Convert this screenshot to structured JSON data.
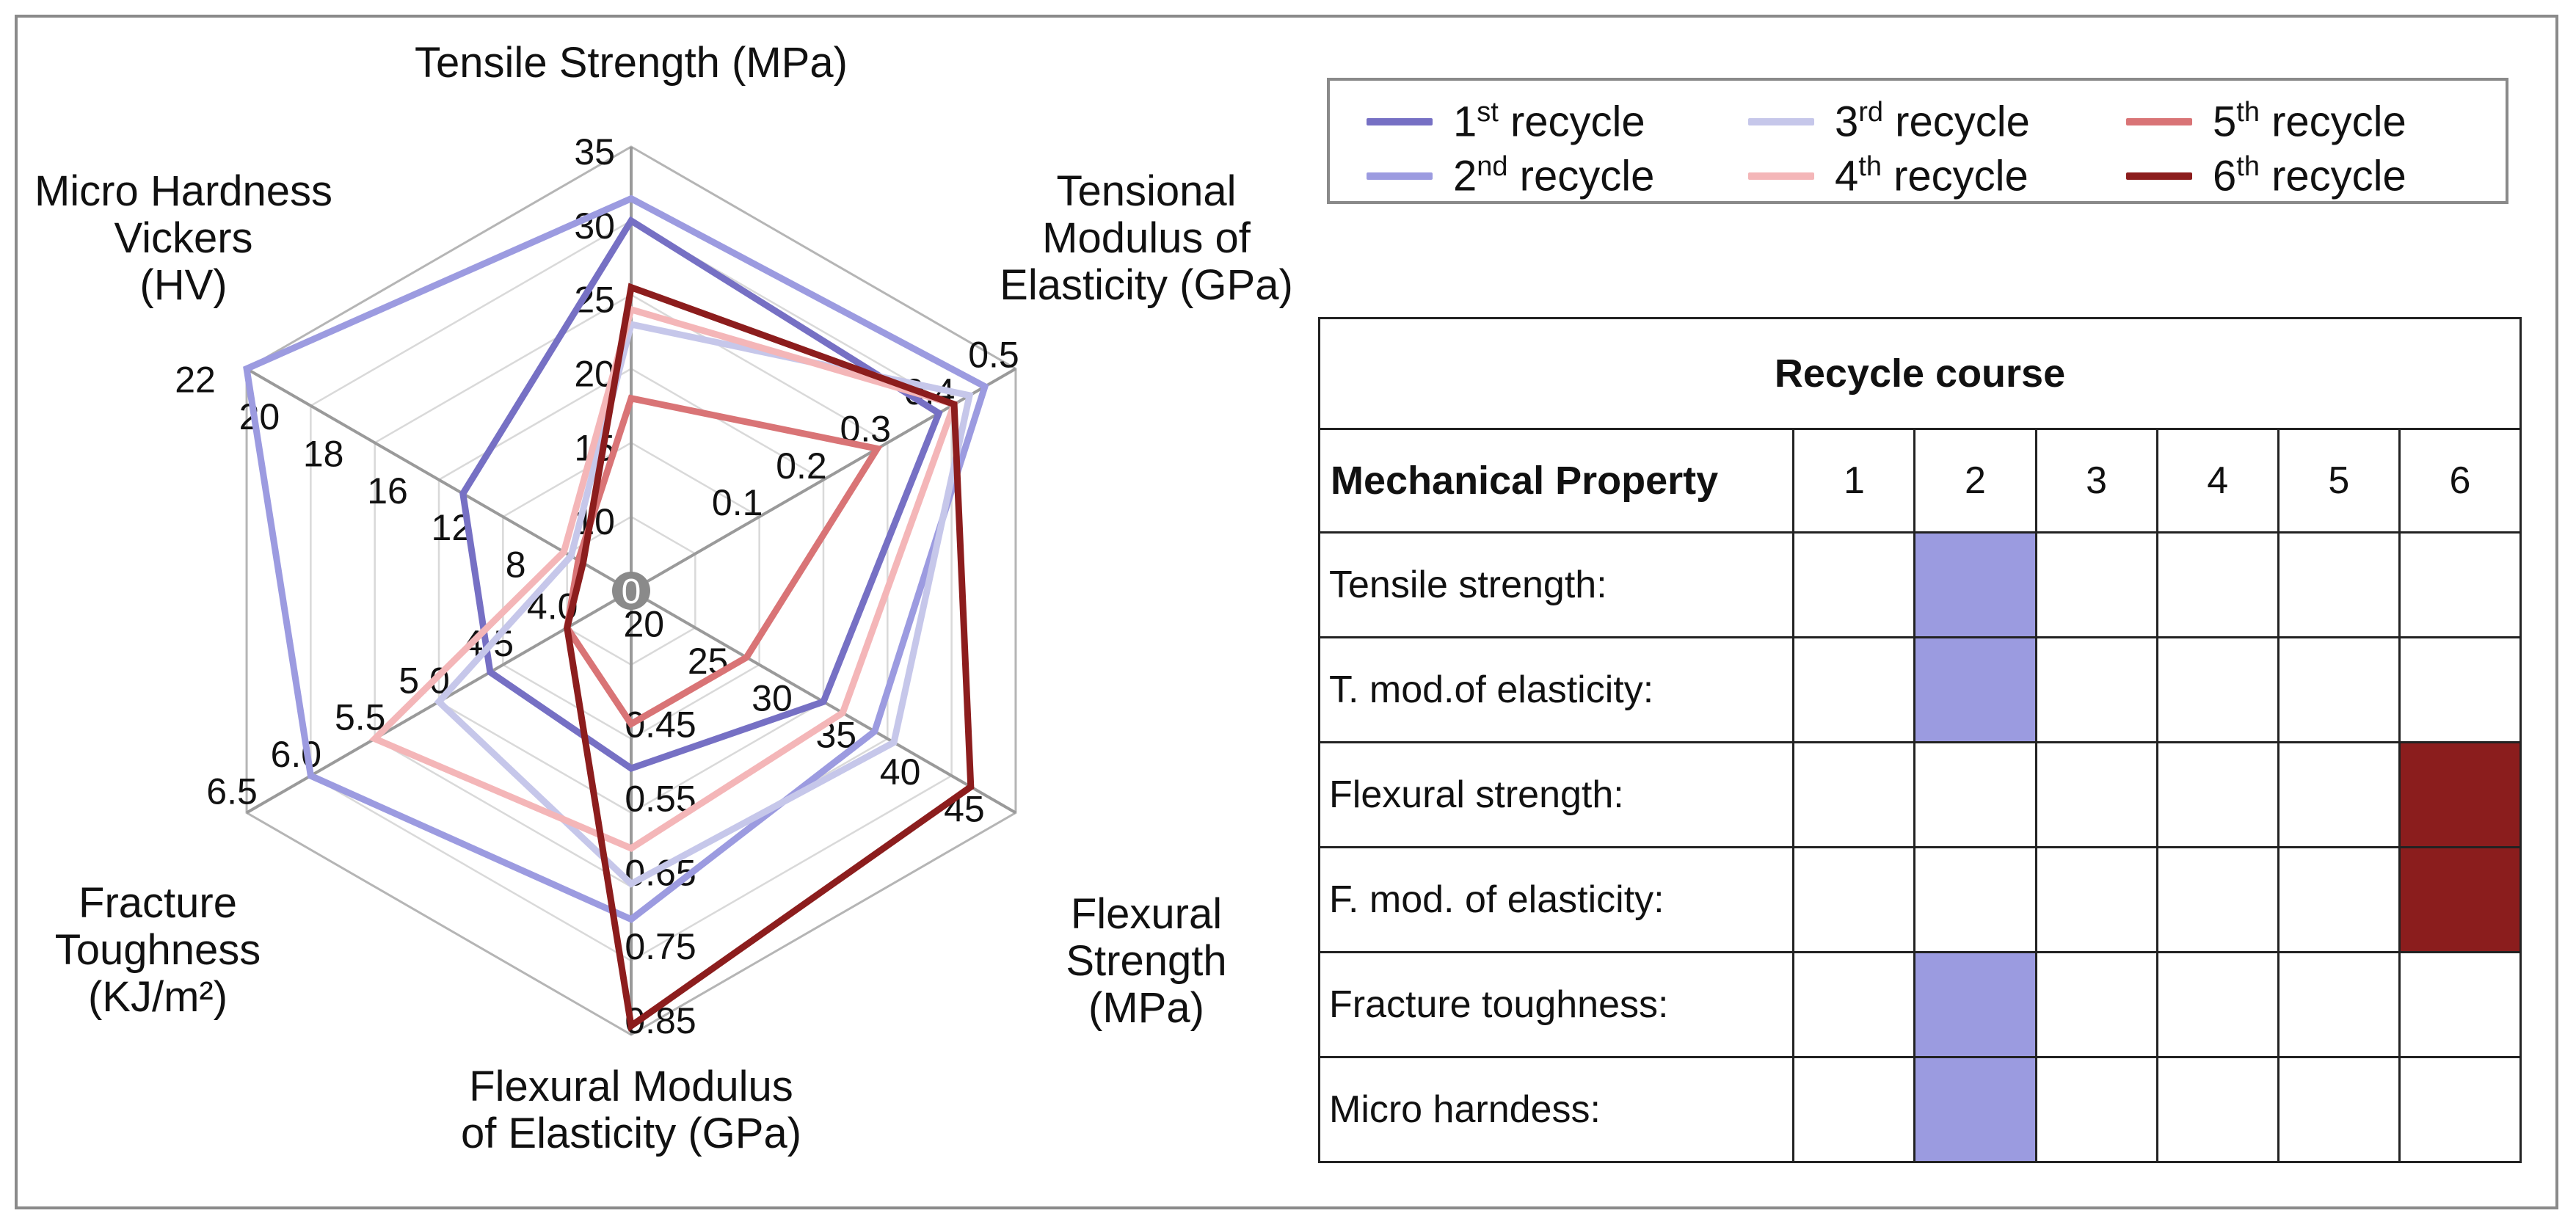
{
  "chart_data": [
    {
      "type": "radar",
      "axes": [
        {
          "key": "tensile_strength",
          "label_lines": [
            "Tensile Strength (MPa)"
          ],
          "ticks": [
            "10",
            "15",
            "20",
            "25",
            "30",
            "35"
          ],
          "range": [
            5,
            35
          ]
        },
        {
          "key": "tensional_modulus",
          "label_lines": [
            "Tensional",
            "Modulus of",
            "Elasticity (GPa)"
          ],
          "ticks": [
            "0.1",
            "0.2",
            "0.3",
            "0.4",
            "0.5"
          ],
          "range": [
            0,
            0.5
          ]
        },
        {
          "key": "flexural_strength",
          "label_lines": [
            "Flexural",
            "Strength",
            "(MPa)"
          ],
          "ticks": [
            "20",
            "25",
            "30",
            "35",
            "40",
            "45"
          ],
          "range": [
            15,
            45
          ]
        },
        {
          "key": "flexural_modulus",
          "label_lines": [
            "Flexural Modulus",
            "of Elasticity (GPa)"
          ],
          "ticks": [
            "0.45",
            "0.55",
            "0.65",
            "0.75",
            "0.85"
          ],
          "range": [
            0.35,
            0.85
          ]
        },
        {
          "key": "fracture_toughness",
          "label_lines": [
            "Fracture",
            "Toughness",
            "(KJ/m²)"
          ],
          "ticks": [
            "4.0",
            "4.5",
            "5.0",
            "5.5",
            "6.0",
            "6.5"
          ],
          "range": [
            3.5,
            6.5
          ]
        },
        {
          "key": "micro_hardness",
          "label_lines": [
            "Micro Hardness",
            "Vickers",
            "(HV)"
          ],
          "ticks": [
            "8",
            "12",
            "16",
            "18",
            "20",
            "22"
          ],
          "range": [
            6,
            22
          ]
        }
      ],
      "center_label": "0",
      "series": [
        {
          "base": "1",
          "sup": "st",
          "suffix": " recycle",
          "color": "#7670c4",
          "values": [
            30,
            0.4,
            30,
            0.55,
            4.6,
            13
          ]
        },
        {
          "base": "2",
          "sup": "nd",
          "suffix": " recycle",
          "color": "#9c9be0",
          "values": [
            31.5,
            0.46,
            34,
            0.72,
            6.0,
            22
          ]
        },
        {
          "base": "3",
          "sup": "rd",
          "suffix": " recycle",
          "color": "#c6c7ea",
          "values": [
            23,
            0.44,
            35.5,
            0.68,
            5.0,
            8.5
          ]
        },
        {
          "base": "4",
          "sup": "th",
          "suffix": " recycle",
          "color": "#f4b6b8",
          "values": [
            24,
            0.42,
            31.5,
            0.64,
            5.5,
            8.8
          ]
        },
        {
          "base": "5",
          "sup": "th",
          "suffix": " recycle",
          "color": "#d97476",
          "values": [
            18,
            0.32,
            24,
            0.5,
            4.0,
            8.2
          ]
        },
        {
          "base": "6",
          "sup": "th",
          "suffix": " recycle",
          "color": "#8c1d1d",
          "values": [
            25.5,
            0.42,
            41.5,
            0.84,
            4.0,
            8.0
          ]
        }
      ]
    },
    {
      "type": "table",
      "title": "Recycle course",
      "property_header": "Mechanical Property",
      "courses": [
        "1",
        "2",
        "3",
        "4",
        "5",
        "6"
      ],
      "rows": [
        {
          "label": "Tensile strength:",
          "best": 2,
          "color": "#9b9be0"
        },
        {
          "label": "T. mod.of elasticity:",
          "best": 2,
          "color": "#9b9be0"
        },
        {
          "label": "Flexural strength:",
          "best": 6,
          "color": "#8b1d1d"
        },
        {
          "label": "F. mod. of elasticity:",
          "best": 6,
          "color": "#8b1d1d"
        },
        {
          "label": "Fracture toughness:",
          "best": 2,
          "color": "#9b9be0"
        },
        {
          "label": "Micro harndess:",
          "best": 2,
          "color": "#9b9be0"
        }
      ]
    }
  ]
}
